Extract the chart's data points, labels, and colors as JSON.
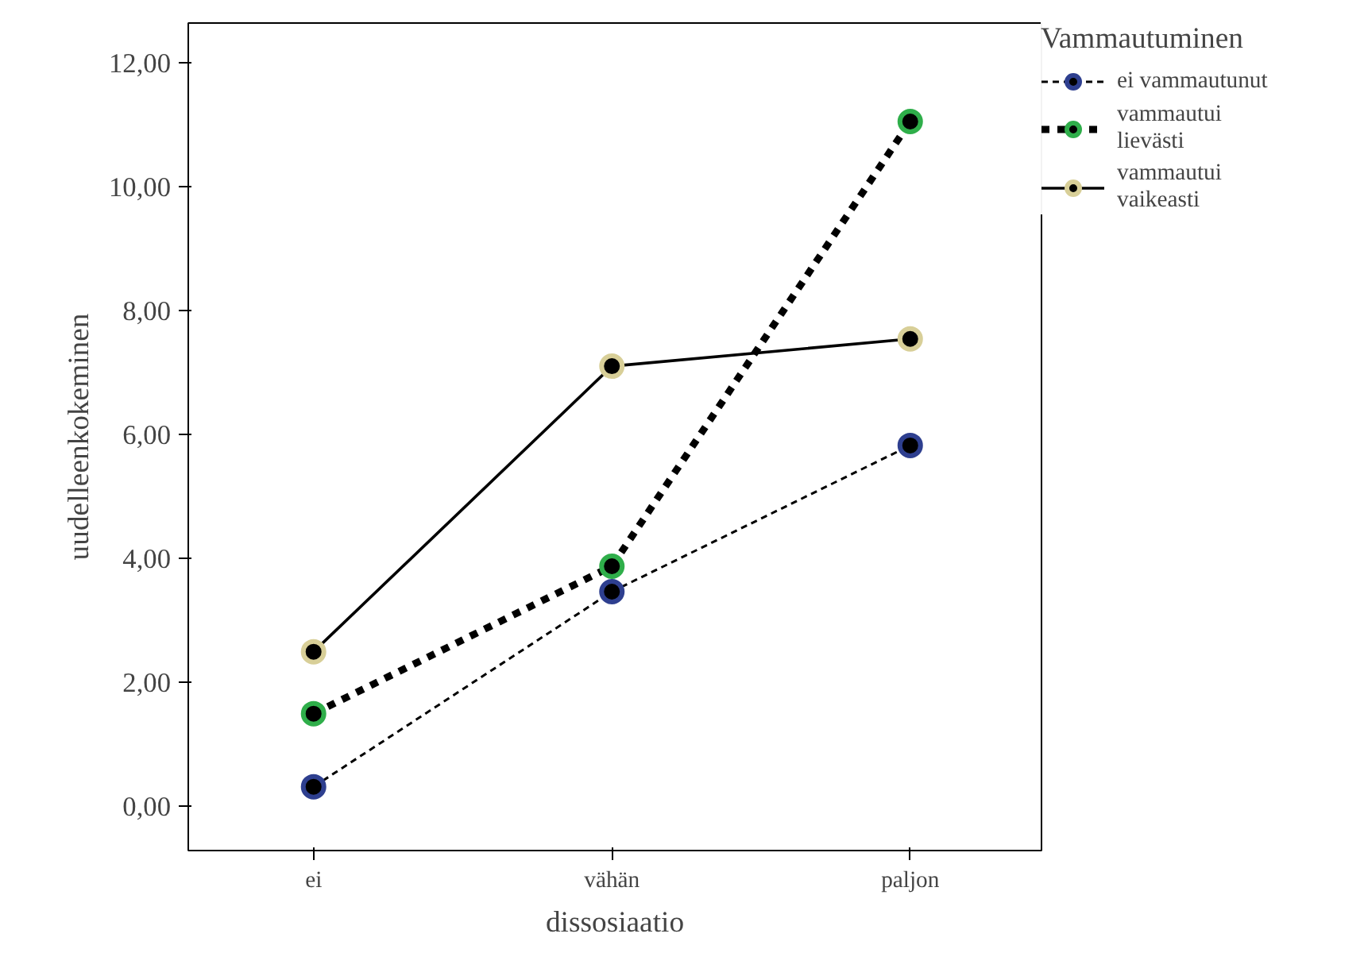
{
  "chart_data": {
    "type": "line",
    "xlabel": "dissosiaatio",
    "ylabel": "uudelleenkokeminen",
    "legend_title": "Vammautuminen",
    "categories": [
      "ei",
      "vähän",
      "paljon"
    ],
    "series": [
      {
        "name": "ei vammautunut",
        "color": "#2e3f8f",
        "line_style": "dashed",
        "values": [
          0.31,
          3.46,
          5.82
        ]
      },
      {
        "name": "vammautui lievästi",
        "color": "#2fae4a",
        "line_style": "dotted",
        "values": [
          1.49,
          3.87,
          11.05
        ]
      },
      {
        "name": "vammautui vaikeasti",
        "color": "#d8cf98",
        "line_style": "solid",
        "values": [
          2.49,
          7.1,
          7.54
        ]
      }
    ],
    "ylim": [
      -0.72,
      12.64
    ],
    "yticks": [
      {
        "value": 0,
        "label": "0,00"
      },
      {
        "value": 2,
        "label": "2,00"
      },
      {
        "value": 4,
        "label": "4,00"
      },
      {
        "value": 6,
        "label": "6,00"
      },
      {
        "value": 8,
        "label": "8,00"
      },
      {
        "value": 10,
        "label": "10,00"
      },
      {
        "value": 12,
        "label": "12,00"
      }
    ],
    "grid": false,
    "legend": "right",
    "marker": "circle"
  }
}
